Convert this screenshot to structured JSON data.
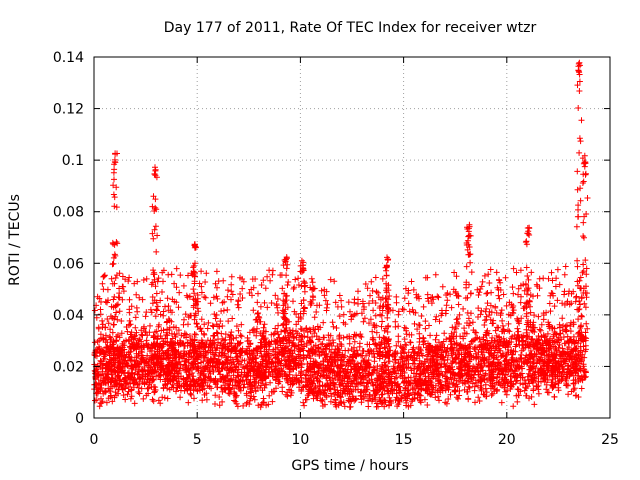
{
  "chart_data": {
    "type": "scatter",
    "title": "Day 177 of 2011, Rate Of TEC Index for receiver wtzr",
    "xlabel": "GPS time / hours",
    "ylabel": "ROTI / TECUs",
    "xlim": [
      0,
      25
    ],
    "ylim": [
      0,
      0.14
    ],
    "xticks": [
      0,
      5,
      10,
      15,
      20,
      25
    ],
    "xtick_labels": [
      "0",
      "5",
      "10",
      "15",
      "20",
      "25"
    ],
    "yticks": [
      0,
      0.02,
      0.04,
      0.06,
      0.08,
      0.1,
      0.12,
      0.14
    ],
    "ytick_labels": [
      "0",
      "0.02",
      "0.04",
      "0.06",
      "0.08",
      "0.1",
      "0.12",
      "0.14"
    ],
    "grid": true,
    "marker": "plus",
    "color": "#ff0000",
    "x_data_range": [
      0,
      23.85
    ],
    "baseline_profile": [
      [
        0.0,
        0.017
      ],
      [
        2.0,
        0.019
      ],
      [
        4.0,
        0.02
      ],
      [
        6.0,
        0.019
      ],
      [
        7.5,
        0.017
      ],
      [
        9.0,
        0.022
      ],
      [
        10.5,
        0.017
      ],
      [
        12.0,
        0.015
      ],
      [
        13.5,
        0.017
      ],
      [
        15.0,
        0.015
      ],
      [
        16.5,
        0.018
      ],
      [
        18.0,
        0.019
      ],
      [
        20.0,
        0.02
      ],
      [
        22.0,
        0.021
      ],
      [
        23.85,
        0.022
      ]
    ],
    "notable_peaks": [
      {
        "x": 1.0,
        "y": 0.103
      },
      {
        "x": 2.95,
        "y": 0.099
      },
      {
        "x": 4.9,
        "y": 0.068
      },
      {
        "x": 9.3,
        "y": 0.063
      },
      {
        "x": 10.1,
        "y": 0.061
      },
      {
        "x": 14.2,
        "y": 0.063
      },
      {
        "x": 18.15,
        "y": 0.075
      },
      {
        "x": 21.05,
        "y": 0.074
      },
      {
        "x": 23.5,
        "y": 0.138
      },
      {
        "x": 23.8,
        "y": 0.102
      }
    ]
  }
}
